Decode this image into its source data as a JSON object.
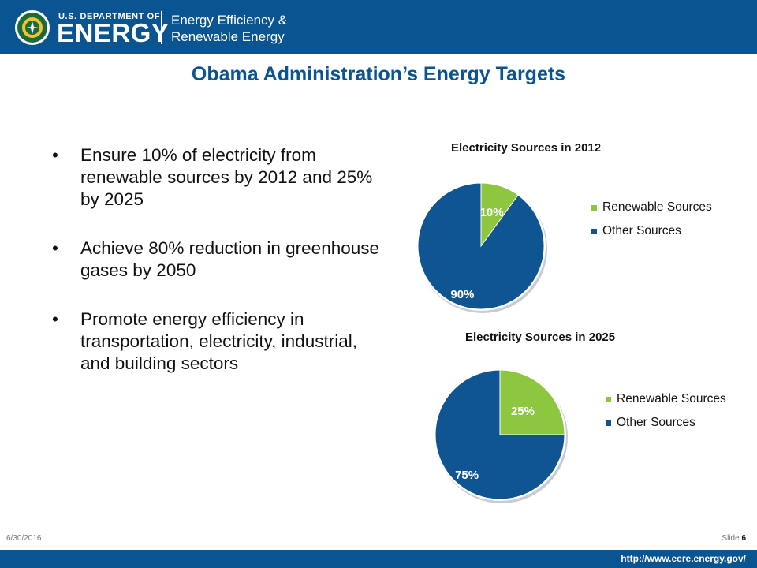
{
  "header": {
    "dept_small": "U.S. DEPARTMENT OF",
    "dept_big": "ENERGY",
    "office_line1": "Energy Efficiency &",
    "office_line2": "Renewable Energy"
  },
  "slide": {
    "title": "Obama Administration’s Energy Targets",
    "bullets": [
      "Ensure 10% of  electricity from renewable sources by 2012 and 25% by 2025",
      "Achieve 80% reduction in greenhouse gases by 2050",
      "Promote energy efficiency in transportation, electricity, industrial, and building sectors"
    ]
  },
  "footer": {
    "date": "6/30/2016",
    "slide_label": "Slide",
    "slide_number": "6",
    "url": "http://www.eere.energy.gov/"
  },
  "colors": {
    "brand": "#0a5591",
    "renewable": "#8dc63f",
    "other": "#0f5592"
  },
  "chart_data": [
    {
      "type": "pie",
      "title": "Electricity Sources in 2012",
      "categories": [
        "Renewable Sources",
        "Other Sources"
      ],
      "values": [
        10,
        90
      ],
      "labels": [
        "10%",
        "90%"
      ],
      "legend": "right"
    },
    {
      "type": "pie",
      "title": "Electricity Sources in 2025",
      "categories": [
        "Renewable Sources",
        "Other Sources"
      ],
      "values": [
        25,
        75
      ],
      "labels": [
        "25%",
        "75%"
      ],
      "legend": "right"
    }
  ]
}
